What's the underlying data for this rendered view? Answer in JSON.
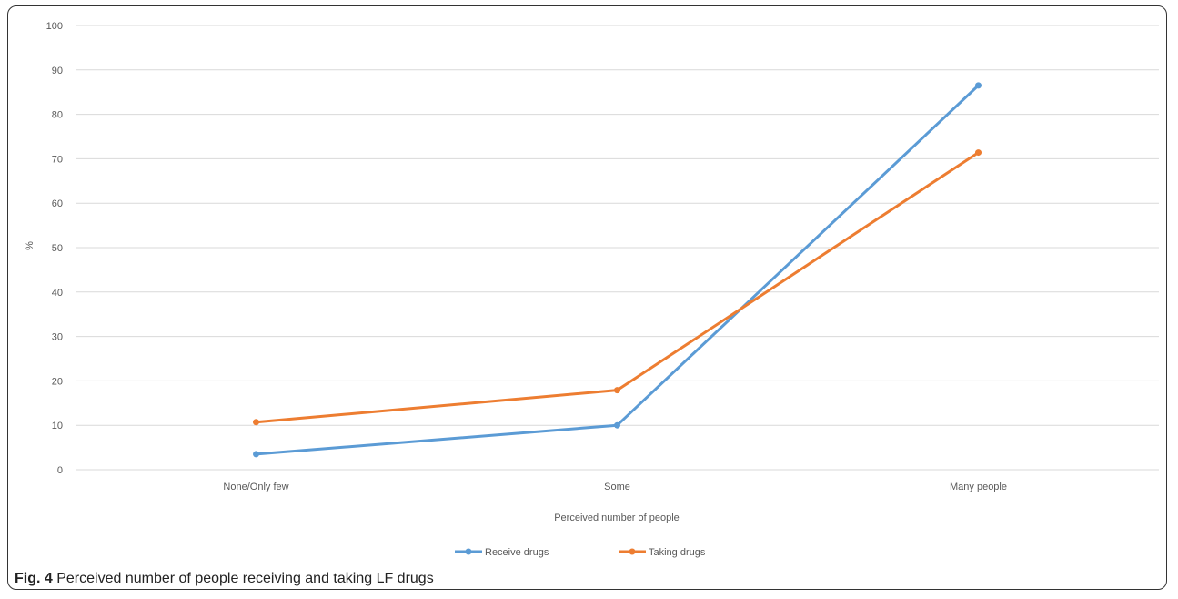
{
  "caption": {
    "label": "Fig. 4",
    "text": "Perceived number of people receiving and taking LF drugs"
  },
  "chart_data": {
    "type": "line",
    "title": "",
    "xlabel": "Perceived number of people",
    "ylabel": "%",
    "categories": [
      "None/Only few",
      "Some",
      "Many people"
    ],
    "ylim": [
      0,
      100
    ],
    "yticks": [
      0,
      10,
      20,
      30,
      40,
      50,
      60,
      70,
      80,
      90,
      100
    ],
    "grid": true,
    "legend_position": "bottom",
    "series": [
      {
        "name": "Receive drugs",
        "color": "#5B9BD5",
        "values": [
          3.5,
          10,
          86.5
        ]
      },
      {
        "name": "Taking drugs",
        "color": "#ED7D31",
        "values": [
          10.7,
          17.9,
          71.4
        ]
      }
    ]
  }
}
